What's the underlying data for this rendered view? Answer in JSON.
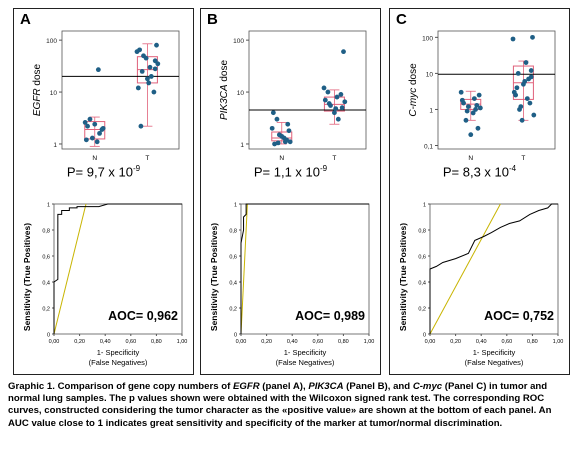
{
  "panels": [
    {
      "label": "A",
      "gene": "EGFR",
      "ylabel_suffix": " dose",
      "p_mantissa": "P= 9,7 x 10",
      "p_exp": "-9",
      "auc_text": "AOC= 0,962",
      "ylim_log": [
        0.8,
        150
      ],
      "ticks": [
        "1",
        "10",
        "100"
      ],
      "tickvals": [
        1,
        10,
        100
      ],
      "threshold": 20,
      "N_points": [
        2.2,
        1.6,
        1.3,
        2.0,
        2.6,
        1.1,
        3.0,
        1.9,
        2.4,
        1.2,
        27
      ],
      "T_points": [
        80,
        60,
        30,
        25,
        40,
        18,
        12,
        20,
        10,
        50,
        35,
        2.2,
        15,
        28,
        45,
        65
      ],
      "N_box": {
        "q1": 1.25,
        "median": 1.9,
        "q3": 2.7,
        "min": 0.9,
        "max": 3.3
      },
      "T_box": {
        "q1": 15,
        "median": 27,
        "q3": 48,
        "min": 2.2,
        "max": 85
      },
      "roc": [
        [
          0,
          0
        ],
        [
          0,
          0.4
        ],
        [
          0.03,
          0.42
        ],
        [
          0.03,
          0.92
        ],
        [
          0.06,
          0.92
        ],
        [
          0.06,
          0.95
        ],
        [
          0.12,
          0.95
        ],
        [
          0.12,
          0.97
        ],
        [
          0.18,
          0.97
        ],
        [
          0.18,
          0.98
        ],
        [
          0.35,
          0.98
        ],
        [
          0.42,
          1.0
        ],
        [
          1,
          1
        ]
      ],
      "diag_end": [
        0.25,
        1
      ]
    },
    {
      "label": "B",
      "gene": "PIK3CA",
      "ylabel_suffix": " dose",
      "p_mantissa": "P= 1,1 x 10",
      "p_exp": "-9",
      "auc_text": "AOC= 0,989",
      "ylim_log": [
        0.8,
        150
      ],
      "ticks": [
        "1",
        "10",
        "100"
      ],
      "tickvals": [
        1,
        10,
        100
      ],
      "threshold": 4.5,
      "N_points": [
        1.0,
        1.2,
        1.5,
        1.1,
        2.0,
        1.3,
        3.0,
        1.8,
        1.4,
        4.0,
        1.1,
        2.4,
        1.05
      ],
      "T_points": [
        60,
        12,
        8,
        6,
        5,
        4,
        7,
        3,
        9,
        5.5,
        6.5,
        10,
        4.8
      ],
      "N_box": {
        "q1": 1.15,
        "median": 1.3,
        "q3": 1.7,
        "min": 1.0,
        "max": 2.6
      },
      "T_box": {
        "q1": 4.3,
        "median": 5.8,
        "q3": 8,
        "min": 2.4,
        "max": 11
      },
      "roc": [
        [
          0,
          0
        ],
        [
          0,
          0.7
        ],
        [
          0.02,
          0.8
        ],
        [
          0.02,
          0.9
        ],
        [
          0.04,
          0.92
        ],
        [
          0.04,
          1.0
        ],
        [
          0.05,
          1.0
        ],
        [
          1,
          1
        ]
      ],
      "diag_end": [
        0.05,
        1
      ]
    },
    {
      "label": "C",
      "gene": "C-myc",
      "ylabel_suffix": " dose",
      "p_mantissa": "P= 8,3 x 10",
      "p_exp": "-4",
      "auc_text": "AOC= 0,752",
      "ylim_log": [
        0.08,
        150
      ],
      "ticks": [
        "0,1",
        "1",
        "10",
        "100"
      ],
      "tickvals": [
        0.1,
        1,
        10,
        100
      ],
      "threshold": 9.5,
      "N_points": [
        1.5,
        1.0,
        1.2,
        2.5,
        3.0,
        0.8,
        0.5,
        0.3,
        0.2,
        1.8,
        2.0,
        1.3,
        0.9,
        1.1
      ],
      "T_points": [
        100,
        90,
        20,
        10,
        8,
        5,
        3,
        2,
        1.5,
        1,
        0.7,
        4,
        6,
        12,
        0.5,
        2.5,
        7,
        1.2
      ],
      "N_box": {
        "q1": 1.0,
        "median": 1.4,
        "q3": 1.9,
        "min": 0.5,
        "max": 3.2
      },
      "T_box": {
        "q1": 1.9,
        "median": 5.5,
        "q3": 16,
        "min": 0.5,
        "max": 22
      },
      "roc": [
        [
          0,
          0
        ],
        [
          0,
          0.5
        ],
        [
          0.05,
          0.52
        ],
        [
          0.1,
          0.55
        ],
        [
          0.2,
          0.58
        ],
        [
          0.3,
          0.62
        ],
        [
          0.35,
          0.72
        ],
        [
          0.42,
          0.75
        ],
        [
          0.48,
          0.78
        ],
        [
          0.55,
          0.82
        ],
        [
          0.62,
          0.85
        ],
        [
          0.7,
          0.87
        ],
        [
          0.78,
          0.92
        ],
        [
          0.85,
          0.95
        ],
        [
          0.92,
          0.97
        ],
        [
          0.95,
          1.0
        ],
        [
          1,
          1
        ]
      ],
      "diag_end": [
        0.55,
        1
      ]
    }
  ],
  "common": {
    "categories": [
      "N",
      "T"
    ],
    "roc_ylabel": "Sensitivity (True Positives)",
    "roc_xlabel_1": "1- Specificity",
    "roc_xlabel_2": "(False Negatives)",
    "roc_xticks": [
      "0,00",
      "0,20",
      "0,40",
      "0,60",
      "0,80",
      "1,00"
    ],
    "roc_yticks": [
      "0",
      "0,2",
      "0,4",
      "0,6",
      "0,8",
      "1"
    ]
  },
  "colors": {
    "dot": "#1f5f86",
    "box": "#e0607a",
    "roc": "#000000",
    "diag": "#c8b400",
    "threshold": "#000000"
  },
  "caption": {
    "p1": "Graphic 1. Comparison of gene copy numbers of ",
    "g1": "EGFR",
    "p2": " (panel A), ",
    "g2": "PIK3CA",
    "p3": " (Panel B), and ",
    "g3": "C-myc",
    "p4": " (Panel C) in tumor and normal lung samples. The p values shown were obtained with the Wilcoxon signed rank test. The corresponding ROC curves, constructed considering the tumor character as the «positive value» are shown at the bottom of each panel. An AUC value close to 1 indicates great sensitivity and specificity of the marker at tumor/normal discrimination."
  },
  "chart_data": [
    {
      "type": "scatter",
      "title": "",
      "panel": "A",
      "categories": [
        "N",
        "T"
      ],
      "ylabel": "EGFR dose",
      "yscale": "log",
      "ylim": [
        0.8,
        150
      ],
      "series": [
        {
          "name": "N",
          "values": [
            2.2,
            1.6,
            1.3,
            2.0,
            2.6,
            1.1,
            3.0,
            1.9,
            2.4,
            1.2,
            27
          ]
        },
        {
          "name": "T",
          "values": [
            80,
            60,
            30,
            25,
            40,
            18,
            12,
            20,
            10,
            50,
            35,
            2.2,
            15,
            28,
            45,
            65
          ]
        }
      ],
      "annotation": "P= 9,7 x 10-9"
    },
    {
      "type": "line",
      "panel": "A-ROC",
      "xlabel": "1- Specificity (False Negatives)",
      "ylabel": "Sensitivity (True Positives)",
      "xlim": [
        0,
        1
      ],
      "ylim": [
        0,
        1
      ],
      "annotation": "AOC= 0,962"
    },
    {
      "type": "scatter",
      "title": "",
      "panel": "B",
      "categories": [
        "N",
        "T"
      ],
      "ylabel": "PIK3CA dose",
      "yscale": "log",
      "ylim": [
        0.8,
        150
      ],
      "series": [
        {
          "name": "N",
          "values": [
            1.0,
            1.2,
            1.5,
            1.1,
            2.0,
            1.3,
            3.0,
            1.8,
            1.4,
            4.0,
            1.1,
            2.4,
            1.05
          ]
        },
        {
          "name": "T",
          "values": [
            60,
            12,
            8,
            6,
            5,
            4,
            7,
            3,
            9,
            5.5,
            6.5,
            10,
            4.8
          ]
        }
      ],
      "annotation": "P= 1,1 x 10-9"
    },
    {
      "type": "line",
      "panel": "B-ROC",
      "xlabel": "1- Specificity (False Negatives)",
      "ylabel": "Sensitivity (True Positives)",
      "xlim": [
        0,
        1
      ],
      "ylim": [
        0,
        1
      ],
      "annotation": "AOC= 0,989"
    },
    {
      "type": "scatter",
      "title": "",
      "panel": "C",
      "categories": [
        "N",
        "T"
      ],
      "ylabel": "C-myc dose",
      "yscale": "log",
      "ylim": [
        0.08,
        150
      ],
      "series": [
        {
          "name": "N",
          "values": [
            1.5,
            1.0,
            1.2,
            2.5,
            3.0,
            0.8,
            0.5,
            0.3,
            0.2,
            1.8,
            2.0,
            1.3,
            0.9,
            1.1
          ]
        },
        {
          "name": "T",
          "values": [
            100,
            90,
            20,
            10,
            8,
            5,
            3,
            2,
            1.5,
            1,
            0.7,
            4,
            6,
            12,
            0.5,
            2.5,
            7,
            1.2
          ]
        }
      ],
      "annotation": "P= 8,3 x 10-4"
    },
    {
      "type": "line",
      "panel": "C-ROC",
      "xlabel": "1- Specificity (False Negatives)",
      "ylabel": "Sensitivity (True Positives)",
      "xlim": [
        0,
        1
      ],
      "ylim": [
        0,
        1
      ],
      "annotation": "AOC= 0,752"
    }
  ]
}
